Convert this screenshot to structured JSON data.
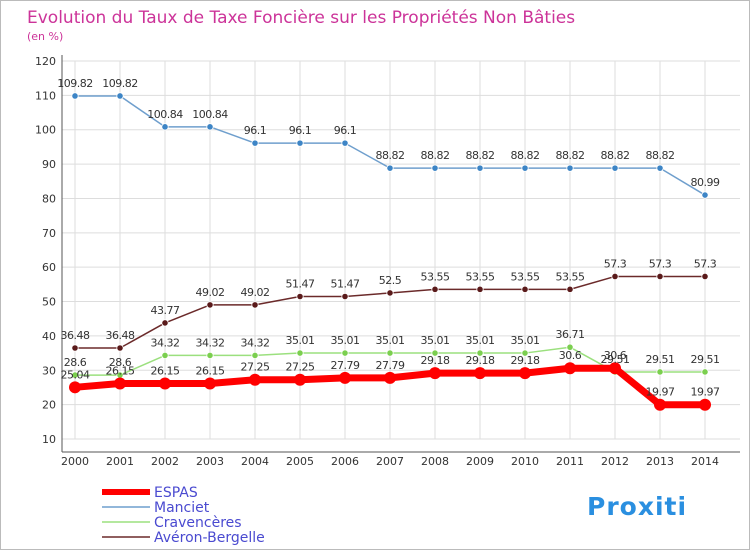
{
  "chart_data": {
    "type": "line",
    "title": "Evolution du Taux de Taxe Foncière sur les Propriétés Non Bâties",
    "subtitle": "(en %)",
    "xlabel": "",
    "ylabel": "",
    "ylim": [
      10,
      120
    ],
    "yticks": [
      10,
      20,
      30,
      40,
      50,
      60,
      70,
      80,
      90,
      100,
      110,
      120
    ],
    "grid": true,
    "legend_position": "bottom-left",
    "x": [
      "2000",
      "2001",
      "2002",
      "2003",
      "2004",
      "2005",
      "2006",
      "2007",
      "2008",
      "2009",
      "2010",
      "2011",
      "2012",
      "2013",
      "2014"
    ],
    "series": [
      {
        "name": "Manciet",
        "color": "#6f9fcd",
        "marker": "#3d85c6",
        "values": [
          109.82,
          109.82,
          100.84,
          100.84,
          96.1,
          96.1,
          96.1,
          88.82,
          88.82,
          88.82,
          88.82,
          88.82,
          88.82,
          88.82,
          80.99
        ],
        "labels": [
          "109.82",
          "109.82",
          "100.84",
          "100.84",
          "96.1",
          "96.1",
          "96.1",
          "88.82",
          "88.82",
          "88.82",
          "88.82",
          "88.82",
          "88.82",
          "88.82",
          "80.99"
        ]
      },
      {
        "name": "Avéron-Bergelle",
        "color": "#6b2a2a",
        "marker": "#5a1a1a",
        "values": [
          36.48,
          36.48,
          43.77,
          49.02,
          49.02,
          51.47,
          51.47,
          52.5,
          53.55,
          53.55,
          53.55,
          53.55,
          57.3,
          57.3,
          57.3
        ],
        "labels": [
          "36.48",
          "36.48",
          "43.77",
          "49.02",
          "49.02",
          "51.47",
          "51.47",
          "52.5",
          "53.55",
          "53.55",
          "53.55",
          "53.55",
          "57.3",
          "57.3",
          "57.3"
        ]
      },
      {
        "name": "Cravencères",
        "color": "#9be07e",
        "marker": "#7bcf4f",
        "values": [
          28.6,
          28.6,
          34.32,
          34.32,
          34.32,
          35.01,
          35.01,
          35.01,
          35.01,
          35.01,
          35.01,
          36.71,
          29.51,
          29.51,
          29.51
        ],
        "labels": [
          "28.6",
          "28.6",
          "34.32",
          "34.32",
          "34.32",
          "35.01",
          "35.01",
          "35.01",
          "35.01",
          "35.01",
          "35.01",
          "36.71",
          "29.51",
          "29.51",
          "29.51"
        ]
      },
      {
        "name": "ESPAS",
        "color": "#ff0000",
        "marker": "#ff0000",
        "values": [
          25.04,
          26.15,
          26.15,
          26.15,
          27.25,
          27.25,
          27.79,
          27.79,
          29.18,
          29.18,
          29.18,
          30.6,
          30.6,
          19.97,
          19.97
        ],
        "labels": [
          "25.04",
          "26.15",
          "26.15",
          "26.15",
          "27.25",
          "27.25",
          "27.79",
          "27.79",
          "29.18",
          "29.18",
          "29.18",
          "30.6",
          "30.6",
          "19.97",
          "19.97"
        ]
      }
    ],
    "legend": [
      "ESPAS",
      "Manciet",
      "Cravencères",
      "Avéron-Bergelle"
    ]
  },
  "logo_text": "Proxiti",
  "colors": {
    "title": "#cc3399",
    "axis_text": "#333333",
    "grid": "#dddddd",
    "legend_text": "#4a4ad0",
    "logo_blue": "#2a8fe0",
    "logo_orange": "#f08a1d",
    "logo_green": "#5cbf3a"
  }
}
